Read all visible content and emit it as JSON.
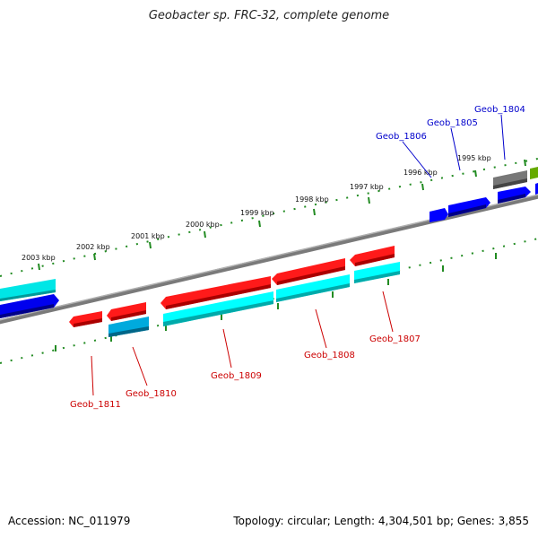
{
  "title": "Geobacter sp. FRC-32, complete genome",
  "footer": {
    "accession": "Accession: NC_011979",
    "summary": "Topology: circular; Length: 4,304,501 bp; Genes: 3,855"
  },
  "kbp_labels": [
    "2003 kbp",
    "2002 kbp",
    "2001 kbp",
    "2000 kbp",
    "1999 kbp",
    "1998 kbp",
    "1997 kbp",
    "1996 kbp",
    "1995 kbp"
  ],
  "genes_forward": [
    "Geob_1806",
    "Geob_1805",
    "Geob_1804"
  ],
  "genes_reverse": [
    "Geob_1811",
    "Geob_1810",
    "Geob_1809",
    "Geob_1808",
    "Geob_1807"
  ],
  "colors": {
    "forward_label": "#0000cc",
    "reverse_label": "#cc0000",
    "red": "#ff0000",
    "cyan": "#00ffff",
    "blue": "#0000ff",
    "light_blue": "#00b0e0",
    "gray_gene": "#777777",
    "olive_gene": "#66aa00",
    "backbone": "#888888",
    "ticks": "#228b22"
  }
}
